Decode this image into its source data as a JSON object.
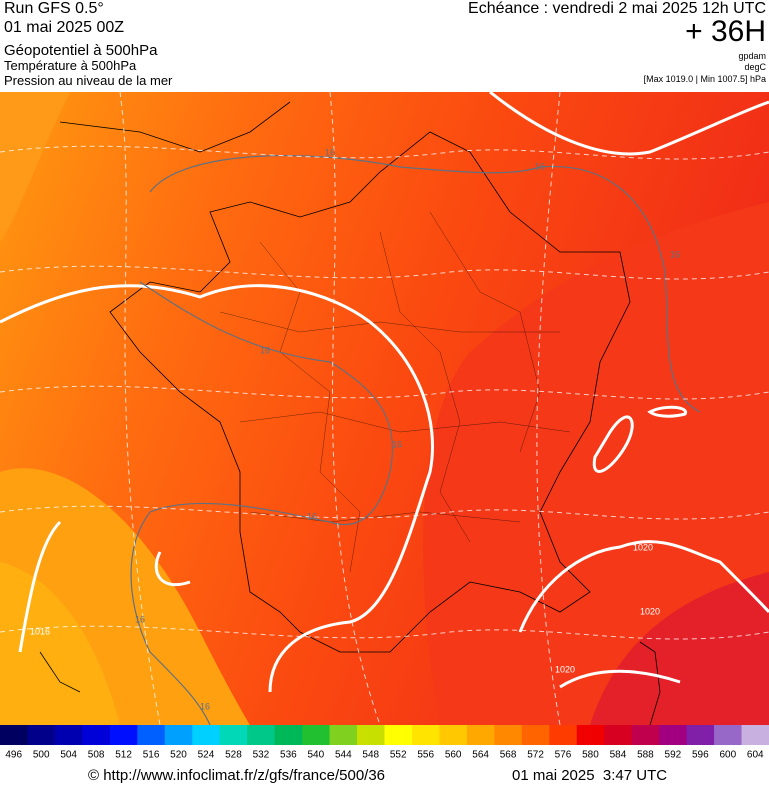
{
  "header": {
    "run": "Run GFS 0.5°",
    "run_date": "01 mai 2025 00Z",
    "field1": "Géopotentiel à 500hPa",
    "field2": "Température à 500hPa",
    "field3": "Pression au niveau de la mer",
    "valid": "Echéance : vendredi 2 mai 2025 12h UTC",
    "lead": "+ 36H",
    "unit1": "gpdam",
    "unit2": "degC",
    "range": "[Max 1019.0 | Min 1007.5] hPa"
  },
  "contour_labels": [
    "16",
    "16",
    "16",
    "16",
    "16",
    "16",
    "16",
    "16",
    "1020",
    "1020",
    "1020",
    "1016"
  ],
  "colorbar": {
    "labels": [
      496,
      500,
      504,
      508,
      512,
      516,
      520,
      524,
      528,
      532,
      536,
      540,
      544,
      548,
      552,
      556,
      560,
      564,
      568,
      572,
      576,
      580,
      584,
      588,
      592,
      596,
      600,
      604
    ],
    "colors": [
      "#000060",
      "#00008a",
      "#0000b0",
      "#0000d8",
      "#0010ff",
      "#0060ff",
      "#00a0ff",
      "#00d0ff",
      "#00d8b8",
      "#00c888",
      "#00b858",
      "#20c030",
      "#80d020",
      "#c8e000",
      "#ffff00",
      "#ffe400",
      "#ffc800",
      "#ffa800",
      "#ff8800",
      "#ff6400",
      "#ff3c00",
      "#f00000",
      "#d80020",
      "#c0004c",
      "#a00080",
      "#8020a8",
      "#9868c8",
      "#c8b0e0"
    ]
  },
  "footer": {
    "url": "© http://www.infoclimat.fr/z/gfs/france/500/36",
    "time": "01 mai 2025  3:47 UTC"
  }
}
